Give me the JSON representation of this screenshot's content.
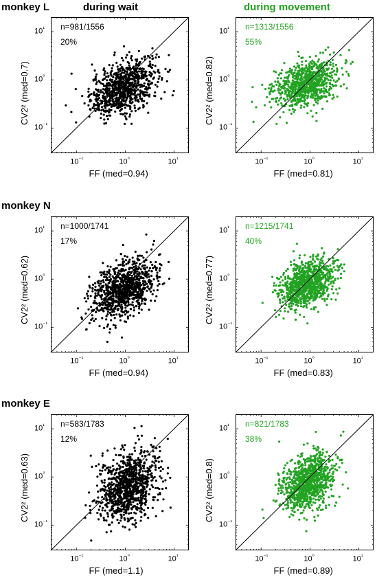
{
  "column_titles": {
    "wait": {
      "text": "during wait",
      "color": "#000000"
    },
    "movement": {
      "text": "during movement",
      "color": "#22a322"
    }
  },
  "colors": {
    "wait": "#000000",
    "movement": "#22a322",
    "identity_line": "#000000"
  },
  "chart_data": [
    {
      "type": "scatter",
      "monkey": "monkey L",
      "condition": "during wait",
      "xlabel": "FF (med=0.94)",
      "ylabel": "CV2² (med=0.7)",
      "annotation_n": "n=981/1556",
      "annotation_pct": "20%",
      "x_median": 0.94,
      "y_median": 0.7,
      "n_points": 1556,
      "color": "#000000",
      "xscale": "log",
      "yscale": "log",
      "xlim": [
        0.03,
        20
      ],
      "ylim": [
        0.03,
        20
      ],
      "xticks": [
        "10⁻¹",
        "10⁰",
        "10¹"
      ],
      "yticks": [
        "10⁻¹",
        "10⁰",
        "10¹"
      ],
      "identity_line": true
    },
    {
      "type": "scatter",
      "monkey": "monkey L",
      "condition": "during movement",
      "xlabel": "FF (med=0.81)",
      "ylabel": "CV2² (med=0.82)",
      "annotation_n": "n=1313/1556",
      "annotation_pct": "55%",
      "x_median": 0.81,
      "y_median": 0.82,
      "n_points": 1556,
      "color": "#22a322",
      "xscale": "log",
      "yscale": "log",
      "xlim": [
        0.03,
        20
      ],
      "ylim": [
        0.03,
        20
      ],
      "xticks": [
        "10⁻¹",
        "10⁰",
        "10¹"
      ],
      "yticks": [
        "10⁻¹",
        "10⁰",
        "10¹"
      ],
      "identity_line": true
    },
    {
      "type": "scatter",
      "monkey": "monkey N",
      "condition": "during wait",
      "xlabel": "FF (med=0.94)",
      "ylabel": "CV2² (med=0.62)",
      "annotation_n": "n=1000/1741",
      "annotation_pct": "17%",
      "x_median": 0.94,
      "y_median": 0.62,
      "n_points": 1741,
      "color": "#000000",
      "xscale": "log",
      "yscale": "log",
      "xlim": [
        0.03,
        20
      ],
      "ylim": [
        0.03,
        20
      ],
      "xticks": [
        "10⁻¹",
        "10⁰",
        "10¹"
      ],
      "yticks": [
        "10⁻¹",
        "10⁰",
        "10¹"
      ],
      "identity_line": true
    },
    {
      "type": "scatter",
      "monkey": "monkey N",
      "condition": "during movement",
      "xlabel": "FF (med=0.83)",
      "ylabel": "CV2² (med=0.77)",
      "annotation_n": "n=1215/1741",
      "annotation_pct": "40%",
      "x_median": 0.83,
      "y_median": 0.77,
      "n_points": 1741,
      "color": "#22a322",
      "xscale": "log",
      "yscale": "log",
      "xlim": [
        0.03,
        20
      ],
      "ylim": [
        0.03,
        20
      ],
      "xticks": [
        "10⁻¹",
        "10⁰",
        "10¹"
      ],
      "yticks": [
        "10⁻¹",
        "10⁰",
        "10¹"
      ],
      "identity_line": true
    },
    {
      "type": "scatter",
      "monkey": "monkey E",
      "condition": "during wait",
      "xlabel": "FF (med=1.1)",
      "ylabel": "CV2² (med=0.63)",
      "annotation_n": "n=583/1783",
      "annotation_pct": "12%",
      "x_median": 1.1,
      "y_median": 0.63,
      "n_points": 1783,
      "color": "#000000",
      "xscale": "log",
      "yscale": "log",
      "xlim": [
        0.03,
        20
      ],
      "ylim": [
        0.03,
        20
      ],
      "xticks": [
        "10⁻¹",
        "10⁰",
        "10¹"
      ],
      "yticks": [
        "10⁻¹",
        "10⁰",
        "10¹"
      ],
      "identity_line": true
    },
    {
      "type": "scatter",
      "monkey": "monkey E",
      "condition": "during movement",
      "xlabel": "FF (med=0.89)",
      "ylabel": "CV2² (med=0.8)",
      "annotation_n": "n=821/1783",
      "annotation_pct": "38%",
      "x_median": 0.89,
      "y_median": 0.8,
      "n_points": 1783,
      "color": "#22a322",
      "xscale": "log",
      "yscale": "log",
      "xlim": [
        0.03,
        20
      ],
      "ylim": [
        0.03,
        20
      ],
      "xticks": [
        "10⁻¹",
        "10⁰",
        "10¹"
      ],
      "yticks": [
        "10⁻¹",
        "10⁰",
        "10¹"
      ],
      "identity_line": true
    }
  ]
}
